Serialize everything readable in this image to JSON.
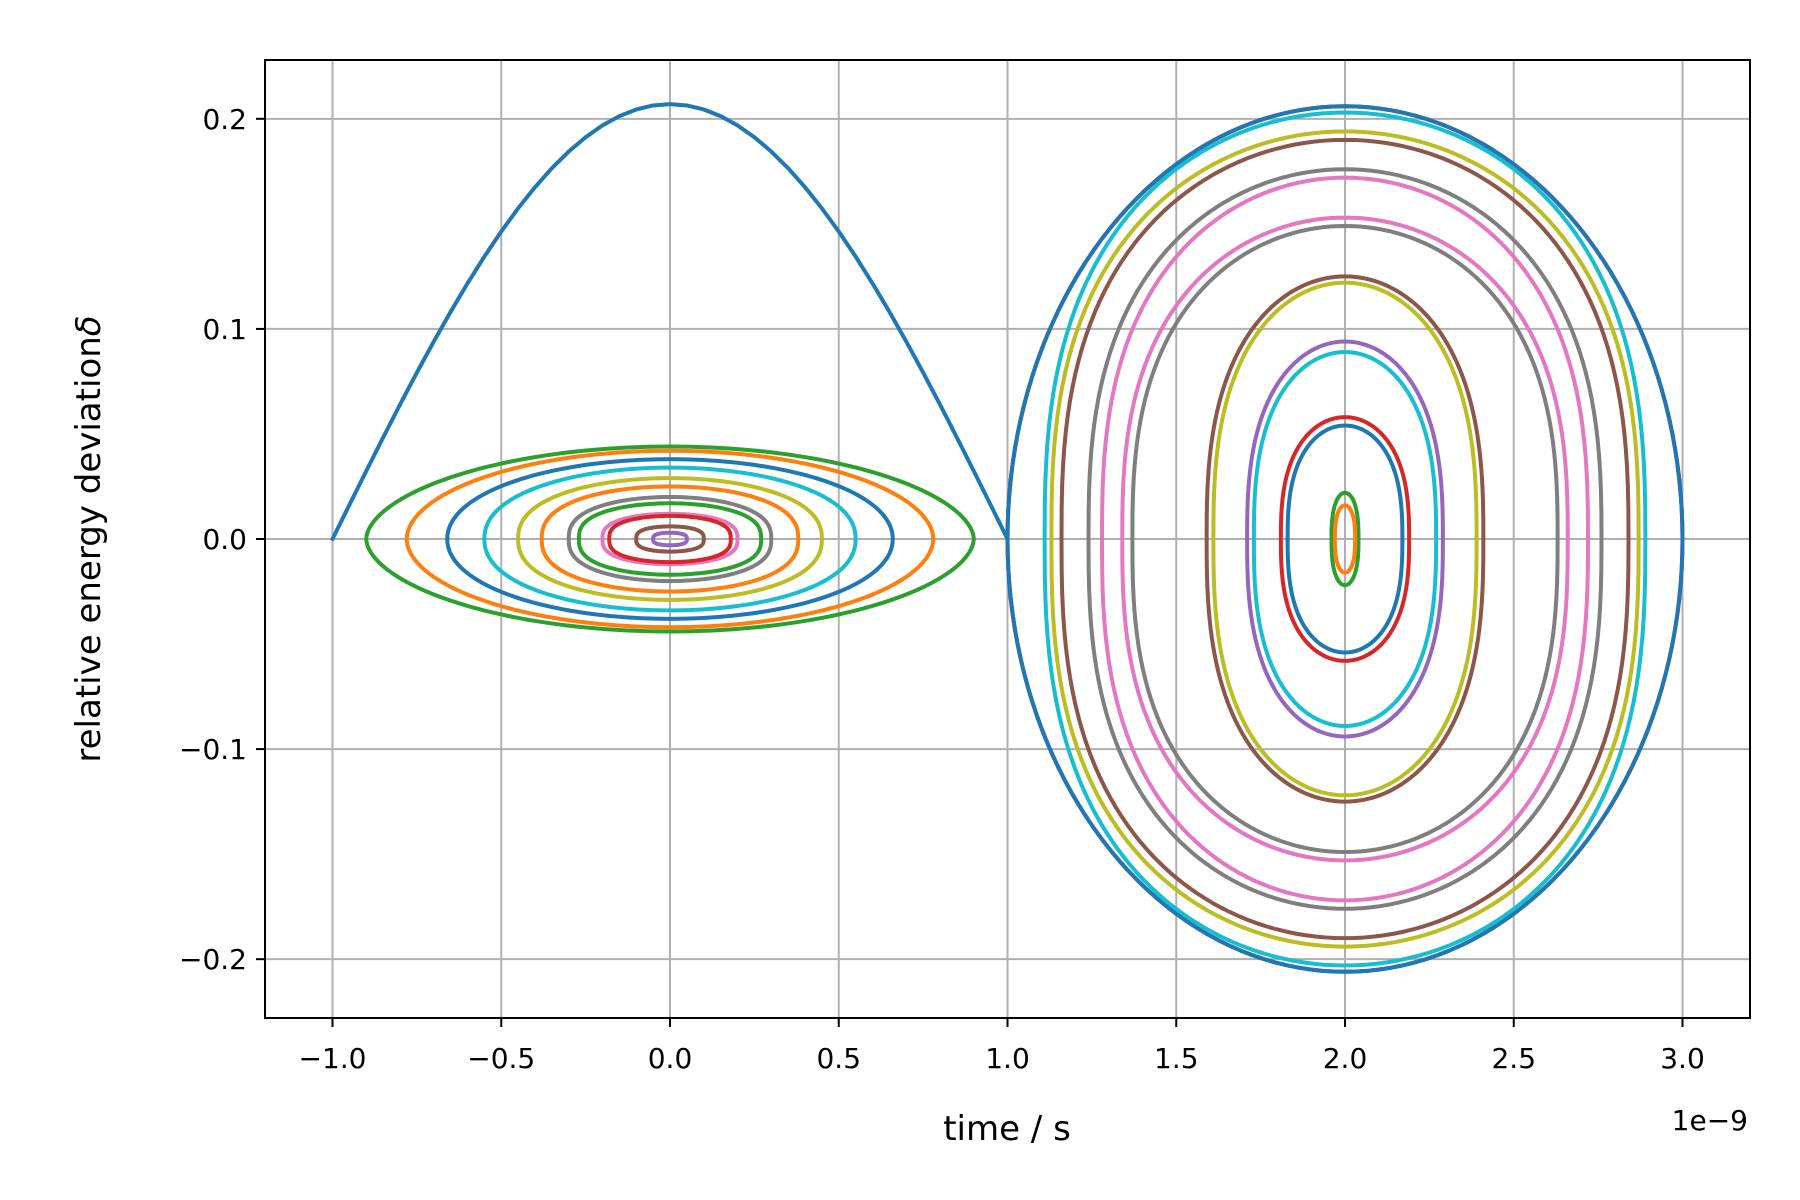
{
  "chart_data": {
    "type": "line",
    "title": "",
    "xlabel": "time / s",
    "ylabel": "relative energy deviation",
    "ylabel_symbol": "δ",
    "x_offset_text": "1e−9",
    "x_scale": 1e-09,
    "xlim": [
      -1.2,
      3.2
    ],
    "ylim": [
      -0.228,
      0.228
    ],
    "xticks": [
      -1.0,
      -0.5,
      0.0,
      0.5,
      1.0,
      1.5,
      2.0,
      2.5,
      3.0
    ],
    "xtick_labels": [
      "−1.0",
      "−0.5",
      "0.0",
      "0.5",
      "1.0",
      "1.5",
      "2.0",
      "2.5",
      "3.0"
    ],
    "yticks": [
      -0.2,
      -0.1,
      0.0,
      0.1,
      0.2
    ],
    "ytick_labels": [
      "−0.2",
      "−0.1",
      "0.0",
      "0.1",
      "0.2"
    ],
    "grid": true,
    "legend": "none",
    "separatrix": {
      "color": "#1f77b4",
      "x": [
        -1.0,
        1.0
      ],
      "peak_x": 0.08,
      "peak_y": 0.207
    },
    "bucket_1_orbits": [
      {
        "center_x": 0.0,
        "half_width": 0.9,
        "half_height": 0.044,
        "color": "#2ca02c"
      },
      {
        "center_x": 0.0,
        "half_width": 0.78,
        "half_height": 0.042,
        "color": "#ff7f0e"
      },
      {
        "center_x": 0.0,
        "half_width": 0.66,
        "half_height": 0.038,
        "color": "#1f77b4"
      },
      {
        "center_x": 0.0,
        "half_width": 0.55,
        "half_height": 0.034,
        "color": "#17becf"
      },
      {
        "center_x": 0.0,
        "half_width": 0.45,
        "half_height": 0.029,
        "color": "#bcbd22"
      },
      {
        "center_x": 0.0,
        "half_width": 0.38,
        "half_height": 0.025,
        "color": "#ff7f0e"
      },
      {
        "center_x": 0.0,
        "half_width": 0.3,
        "half_height": 0.02,
        "color": "#7f7f7f"
      },
      {
        "center_x": 0.0,
        "half_width": 0.27,
        "half_height": 0.017,
        "color": "#2ca02c"
      },
      {
        "center_x": 0.0,
        "half_width": 0.2,
        "half_height": 0.012,
        "color": "#e377c2"
      },
      {
        "center_x": 0.0,
        "half_width": 0.18,
        "half_height": 0.011,
        "color": "#d62728"
      },
      {
        "center_x": 0.0,
        "half_width": 0.1,
        "half_height": 0.006,
        "color": "#8c564b"
      },
      {
        "center_x": 0.0,
        "half_width": 0.05,
        "half_height": 0.003,
        "color": "#9467bd"
      }
    ],
    "bucket_2_orbits": [
      {
        "center_x": 2.0,
        "half_width": 1.0,
        "half_height": 0.206,
        "color": "#d62728"
      },
      {
        "center_x": 2.0,
        "half_width": 1.0,
        "half_height": 0.206,
        "color": "#1f77b4"
      },
      {
        "center_x": 2.0,
        "half_width": 0.89,
        "half_height": 0.203,
        "color": "#17becf"
      },
      {
        "center_x": 2.0,
        "half_width": 0.87,
        "half_height": 0.194,
        "color": "#bcbd22"
      },
      {
        "center_x": 2.0,
        "half_width": 0.84,
        "half_height": 0.19,
        "color": "#8c564b"
      },
      {
        "center_x": 2.0,
        "half_width": 0.76,
        "half_height": 0.176,
        "color": "#7f7f7f"
      },
      {
        "center_x": 2.0,
        "half_width": 0.72,
        "half_height": 0.172,
        "color": "#e377c2"
      },
      {
        "center_x": 2.0,
        "half_width": 0.66,
        "half_height": 0.153,
        "color": "#e377c2"
      },
      {
        "center_x": 2.0,
        "half_width": 0.63,
        "half_height": 0.149,
        "color": "#7f7f7f"
      },
      {
        "center_x": 2.0,
        "half_width": 0.41,
        "half_height": 0.125,
        "color": "#8c564b"
      },
      {
        "center_x": 2.0,
        "half_width": 0.39,
        "half_height": 0.122,
        "color": "#bcbd22"
      },
      {
        "center_x": 2.0,
        "half_width": 0.29,
        "half_height": 0.094,
        "color": "#9467bd"
      },
      {
        "center_x": 2.0,
        "half_width": 0.27,
        "half_height": 0.089,
        "color": "#17becf"
      },
      {
        "center_x": 2.0,
        "half_width": 0.19,
        "half_height": 0.058,
        "color": "#d62728"
      },
      {
        "center_x": 2.0,
        "half_width": 0.17,
        "half_height": 0.054,
        "color": "#1f77b4"
      },
      {
        "center_x": 2.0,
        "half_width": 0.04,
        "half_height": 0.022,
        "color": "#2ca02c"
      },
      {
        "center_x": 2.0,
        "half_width": 0.03,
        "half_height": 0.016,
        "color": "#ff7f0e"
      }
    ]
  }
}
